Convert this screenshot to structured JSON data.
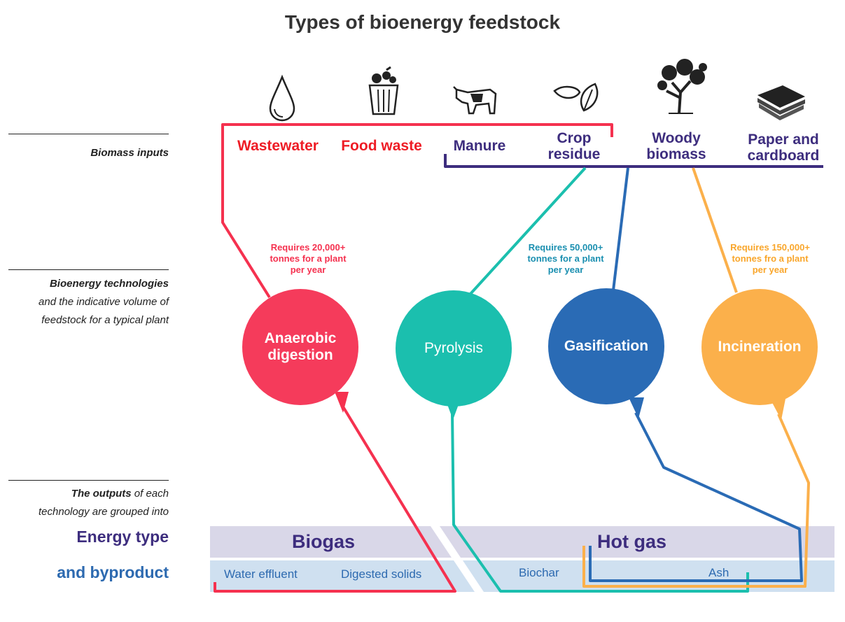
{
  "title": "Types of bioenergy feedstock",
  "sidebar": {
    "inputs_label": "Biomass inputs",
    "tech_bold": "Bioenergy technologies",
    "tech_line2": "and the indicative volume of",
    "tech_line3": "feedstock for a typical plant",
    "outputs_bold": "The outputs",
    "outputs_rest": " of each",
    "outputs_line2": "technology are grouped into",
    "energy_type": "Energy type",
    "byproduct": "and byproduct"
  },
  "inputs": [
    {
      "line1": "Wastewater",
      "line2": "",
      "icon": "water-drop-icon"
    },
    {
      "line1": "Food waste",
      "line2": "",
      "icon": "food-bin-icon"
    },
    {
      "line1": "Manure",
      "line2": "",
      "icon": "cow-icon"
    },
    {
      "line1": "Crop",
      "line2": "residue",
      "icon": "leaves-icon"
    },
    {
      "line1": "Woody",
      "line2": "biomass",
      "icon": "tree-icon"
    },
    {
      "line1": "Paper and",
      "line2": "cardboard",
      "icon": "paper-stack-icon"
    }
  ],
  "requirements": [
    {
      "l1": "Requires 20,000+",
      "l2": "tonnes for a plant",
      "l3": "per year"
    },
    {
      "l1": "Requires 50,000+",
      "l2": "tonnes for a plant",
      "l3": "per year"
    },
    {
      "l1": "Requires 150,000+",
      "l2": "tonnes fro a plant",
      "l3": "per year"
    }
  ],
  "technologies": [
    {
      "l1": "Anaerobic",
      "l2": "digestion"
    },
    {
      "l1": "Pyrolysis",
      "l2": ""
    },
    {
      "l1": "Gasification",
      "l2": ""
    },
    {
      "l1": "Incineration",
      "l2": ""
    }
  ],
  "outputs": {
    "energy_left": "Biogas",
    "energy_right": "Hot gas",
    "byproducts": [
      "Water effluent",
      "Digested solids",
      "Biochar",
      "Ash"
    ]
  },
  "colors": {
    "red": "#f5314f",
    "teal": "#1bbfae",
    "blue": "#2a6bb5",
    "orange": "#fbb04b",
    "purple": "#3d2d7e",
    "input_red": "#ee1c25",
    "band_top": "#d9d7e8",
    "band_bottom": "#cfe0f0"
  }
}
